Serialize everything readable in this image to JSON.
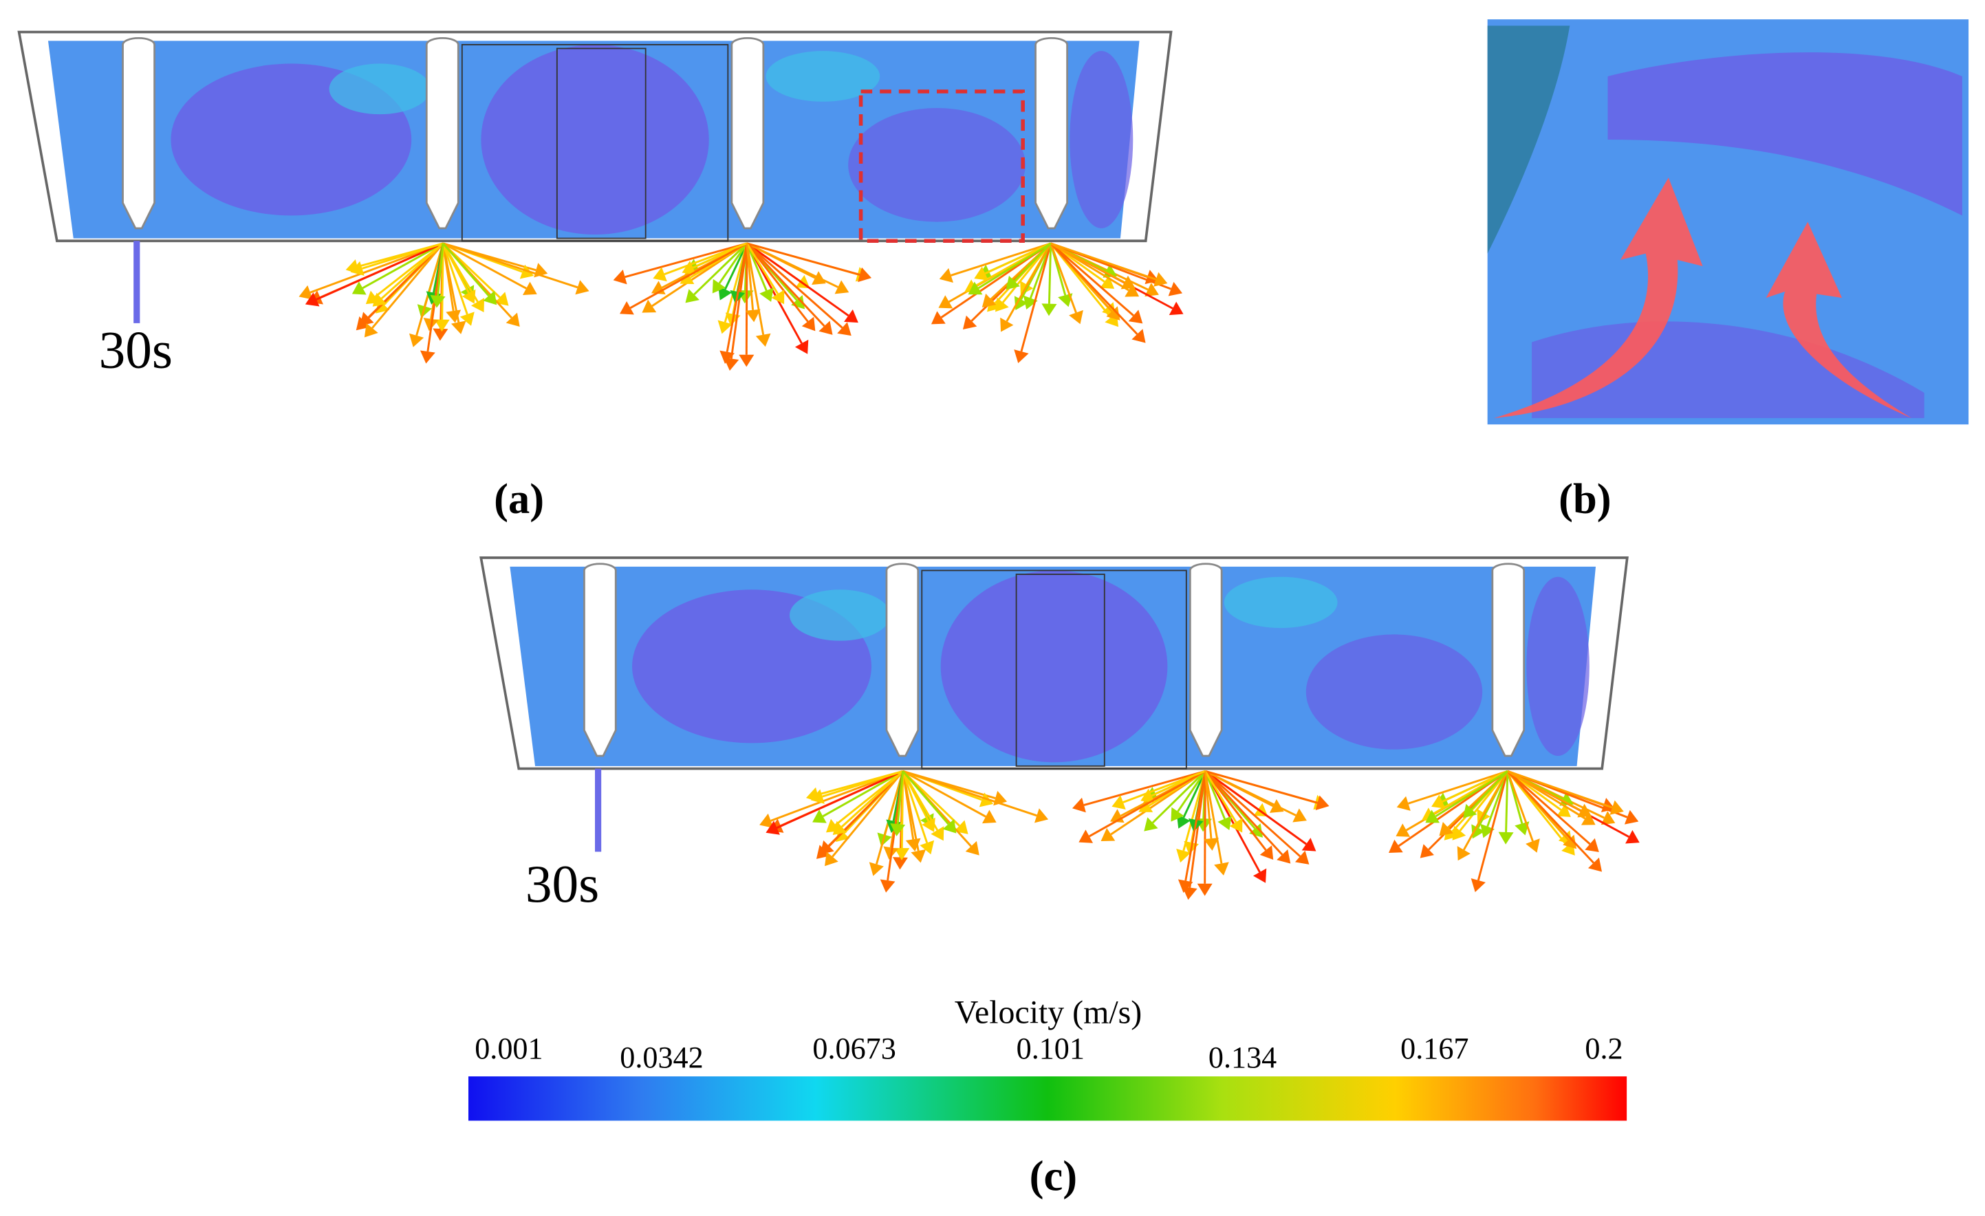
{
  "panels": [
    {
      "label": "(a)",
      "time": "30s"
    },
    {
      "label": "(b)"
    },
    {
      "label": "(c)",
      "time": "30s"
    }
  ],
  "colorbar": {
    "title": "Velocity (m/s)",
    "ticks": [
      0.001,
      0.0342,
      0.0673,
      0.101,
      0.134,
      0.167,
      0.2
    ]
  }
}
